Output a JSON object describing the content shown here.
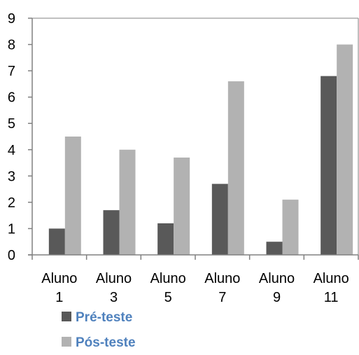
{
  "chart_data": {
    "type": "bar",
    "categories": [
      [
        "Aluno",
        "1"
      ],
      [
        "Aluno",
        "3"
      ],
      [
        "Aluno",
        "5"
      ],
      [
        "Aluno",
        "7"
      ],
      [
        "Aluno",
        "9"
      ],
      [
        "Aluno",
        "11"
      ]
    ],
    "series": [
      {
        "name": "Pré-teste",
        "color": "#595959",
        "values": [
          1,
          1.7,
          1.2,
          2.7,
          0.5,
          6.8
        ]
      },
      {
        "name": "Pós-teste",
        "color": "#b2b2b2",
        "values": [
          4.5,
          4.0,
          3.7,
          6.6,
          2.1,
          8.0
        ]
      }
    ],
    "yticks": [
      0,
      1,
      2,
      3,
      4,
      5,
      6,
      7,
      8,
      9
    ],
    "ylim": [
      0,
      9
    ],
    "grid": false,
    "legend_position": "bottom-left",
    "title": "",
    "xlabel": "",
    "ylabel": ""
  }
}
